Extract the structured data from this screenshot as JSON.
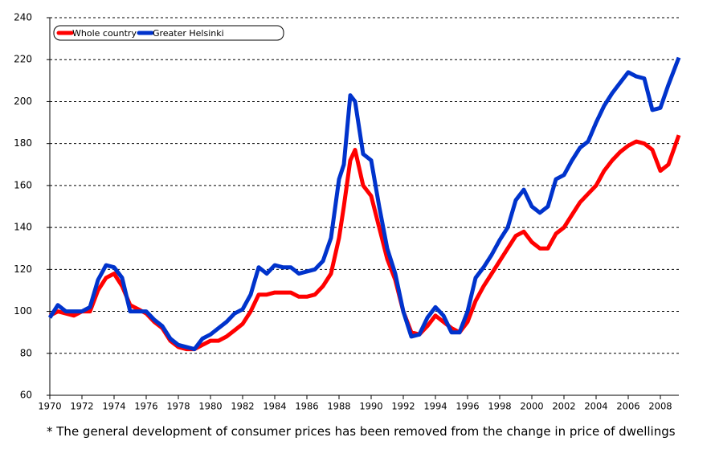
{
  "chart_data": {
    "type": "line",
    "note": "* The general development of consumer prices has been removed from the change in price of dwellings",
    "x": [
      1970,
      1970.5,
      1971,
      1971.5,
      1972,
      1972.5,
      1973,
      1973.5,
      1974,
      1974.5,
      1975,
      1975.5,
      1976,
      1976.5,
      1977,
      1977.5,
      1978,
      1978.5,
      1979,
      1979.5,
      1980,
      1980.5,
      1981,
      1981.5,
      1982,
      1982.5,
      1983,
      1983.5,
      1984,
      1984.5,
      1985,
      1985.5,
      1986,
      1986.5,
      1987,
      1987.5,
      1988,
      1988.3,
      1988.7,
      1989,
      1989.5,
      1990,
      1990.5,
      1991,
      1991.5,
      1992,
      1992.5,
      1993,
      1993.5,
      1994,
      1994.5,
      1995,
      1995.5,
      1996,
      1996.5,
      1997,
      1997.5,
      1998,
      1998.5,
      1999,
      1999.5,
      2000,
      2000.5,
      2001,
      2001.5,
      2002,
      2002.5,
      2003,
      2003.5,
      2004,
      2004.5,
      2005,
      2005.5,
      2006,
      2006.5,
      2007,
      2007.5,
      2008,
      2008.5,
      2009.15
    ],
    "series": [
      {
        "name": "Whole country",
        "color": "#ff0000",
        "values": [
          98,
          100,
          99,
          98,
          100,
          100,
          110,
          116,
          118,
          112,
          103,
          101,
          99,
          95,
          92,
          86,
          83,
          82,
          82,
          84,
          86,
          86,
          88,
          91,
          94,
          100,
          108,
          108,
          109,
          109,
          109,
          107,
          107,
          108,
          112,
          118,
          135,
          150,
          172,
          177,
          160,
          155,
          140,
          125,
          115,
          100,
          90,
          89,
          93,
          98,
          95,
          92,
          90,
          95,
          105,
          112,
          118,
          124,
          130,
          136,
          138,
          133,
          130,
          130,
          137,
          140,
          146,
          152,
          156,
          160,
          167,
          172,
          176,
          179,
          181,
          180,
          177,
          167,
          170,
          184
        ]
      },
      {
        "name": "Greater Helsinki",
        "color": "#0033cc",
        "values": [
          97,
          103,
          100,
          100,
          100,
          102,
          115,
          122,
          121,
          116,
          100,
          100,
          100,
          96,
          93,
          87,
          84,
          83,
          82,
          87,
          89,
          92,
          95,
          99,
          101,
          108,
          121,
          118,
          122,
          121,
          121,
          118,
          119,
          120,
          124,
          135,
          163,
          170,
          203,
          200,
          175,
          172,
          150,
          130,
          118,
          100,
          88,
          89,
          97,
          102,
          98,
          90,
          90,
          100,
          116,
          121,
          127,
          134,
          140,
          153,
          158,
          150,
          147,
          150,
          163,
          165,
          172,
          178,
          181,
          190,
          198,
          204,
          209,
          214,
          212,
          211,
          196,
          197,
          208,
          221
        ]
      }
    ],
    "xlim": [
      1970,
      2009.15
    ],
    "xticks": [
      1970,
      1972,
      1974,
      1976,
      1978,
      1980,
      1982,
      1984,
      1986,
      1988,
      1990,
      1992,
      1994,
      1996,
      1998,
      2000,
      2002,
      2004,
      2006,
      2008
    ],
    "ylim": [
      60,
      240
    ],
    "yticks": [
      60,
      80,
      100,
      120,
      140,
      160,
      180,
      200,
      220,
      240
    ],
    "grid": true,
    "legend": "top-left"
  }
}
